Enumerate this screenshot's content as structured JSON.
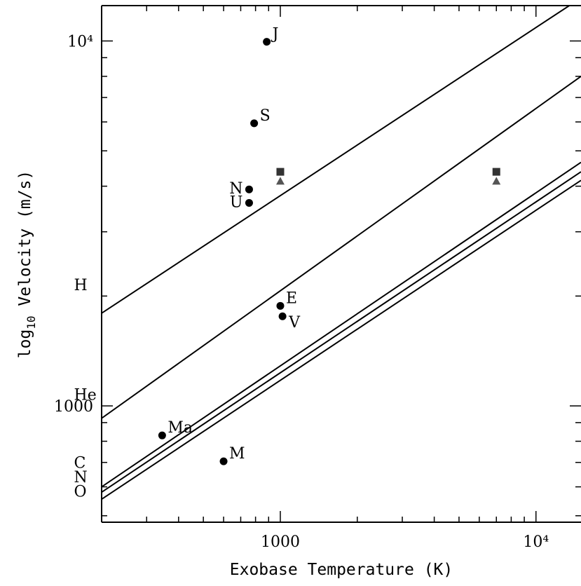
{
  "chart_data": {
    "type": "scatter",
    "title": "",
    "xlabel": "Exobase Temperature (K)",
    "ylabel_prefix": "log",
    "ylabel_sub": "10",
    "ylabel_rest": " Velocity (m/s)",
    "x_scale": "log",
    "y_scale": "log",
    "xlim": [
      200,
      15000
    ],
    "ylim": [
      480,
      12500
    ],
    "x_ticks": [
      {
        "value": 1000,
        "label": "1000"
      },
      {
        "value": 10000,
        "label": "10⁴"
      }
    ],
    "y_ticks": [
      {
        "value": 1000,
        "label": "1000"
      },
      {
        "value": 10000,
        "label": "10⁴"
      }
    ],
    "grid": false,
    "lines": [
      {
        "name": "H",
        "label_x": 270,
        "label_y": 2150,
        "points": [
          [
            200,
            1795
          ],
          [
            13500,
            12500
          ]
        ]
      },
      {
        "name": "He",
        "label_x": 270,
        "label_y": 1075,
        "points": [
          [
            200,
            925
          ],
          [
            15000,
            8000
          ]
        ]
      },
      {
        "name": "C",
        "label_x": 270,
        "label_y": 700,
        "points": [
          [
            200,
            600
          ],
          [
            15000,
            4650
          ]
        ]
      },
      {
        "name": "N",
        "label_x": 270,
        "label_y": 640,
        "points": [
          [
            200,
            580
          ],
          [
            15000,
            4380
          ]
        ]
      },
      {
        "name": "O",
        "label_x": 270,
        "label_y": 585,
        "points": [
          [
            200,
            555
          ],
          [
            15000,
            4150
          ]
        ]
      }
    ],
    "points": [
      {
        "label": "J",
        "x": 885,
        "y": 9950,
        "marker": "circle"
      },
      {
        "label": "S",
        "x": 790,
        "y": 5950,
        "marker": "circle"
      },
      {
        "label": "N",
        "x": 755,
        "y": 3920,
        "marker": "circle"
      },
      {
        "label": "U",
        "x": 755,
        "y": 3600,
        "marker": "circle"
      },
      {
        "label": "E",
        "x": 1000,
        "y": 1880,
        "marker": "circle"
      },
      {
        "label": "V",
        "x": 1020,
        "y": 1760,
        "marker": "circle"
      },
      {
        "label": "Ma",
        "x": 345,
        "y": 830,
        "marker": "circle"
      },
      {
        "label": "M",
        "x": 600,
        "y": 705,
        "marker": "circle"
      },
      {
        "label": "",
        "x": 1000,
        "y": 4380,
        "marker": "square"
      },
      {
        "label": "",
        "x": 1000,
        "y": 4130,
        "marker": "triangle"
      },
      {
        "label": "",
        "x": 7000,
        "y": 4380,
        "marker": "square"
      },
      {
        "label": "",
        "x": 7000,
        "y": 4130,
        "marker": "triangle"
      }
    ],
    "colors": {
      "line": "#000000",
      "circle": "#000000",
      "square": "#333333",
      "triangle": "#555555"
    }
  }
}
